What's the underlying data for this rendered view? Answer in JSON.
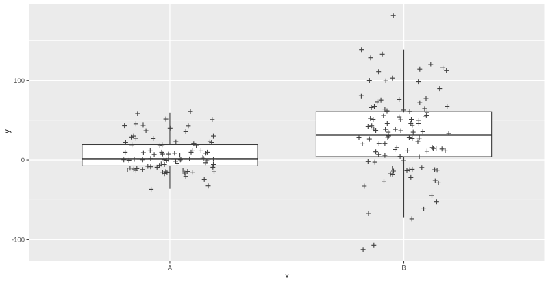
{
  "chart_data": {
    "type": "boxplot",
    "subtype": "boxplot-with-jitter",
    "orientation": "vertical",
    "title": "",
    "xlabel": "x",
    "ylabel": "y",
    "categories": [
      "A",
      "B"
    ],
    "y_ticks": [
      -100,
      0,
      100
    ],
    "y_minor_gridlines": [
      -50,
      50,
      150
    ],
    "ylim": [
      -126.3,
      196
    ],
    "grid": "on",
    "legend": "none",
    "panel_bg": "#EBEBEB",
    "grid_color": "#FFFFFF",
    "box_fill": "#FFFFFF",
    "box_stroke": "#3A3A3A",
    "median_color": "#252525",
    "point_color": "#3F3F3F",
    "axis_text_color": "#4D4D4D",
    "tick_mark_color": "#333333",
    "point_marker": "plus",
    "boxes": [
      {
        "category": "A",
        "q1": -7.2,
        "median": 1.4,
        "q3": 19.4,
        "whisker_low": -35.8,
        "whisker_high": 59.5
      },
      {
        "category": "B",
        "q1": 4.3,
        "median": 31.4,
        "q3": 60.9,
        "whisker_low": -71.8,
        "whisker_high": 138.7
      }
    ],
    "jitter_points": {
      "A": [
        [
          -0.138,
          58.6
        ],
        [
          0.088,
          61.2
        ],
        [
          -0.017,
          51.5
        ],
        [
          0.181,
          50.9
        ],
        [
          -0.194,
          43.4
        ],
        [
          -0.145,
          45.8
        ],
        [
          -0.114,
          44.0
        ],
        [
          -0.102,
          36.9
        ],
        [
          0.001,
          40.2
        ],
        [
          0.079,
          43.2
        ],
        [
          0.068,
          35.7
        ],
        [
          -0.155,
          30.0
        ],
        [
          -0.165,
          29.0
        ],
        [
          -0.145,
          27.5
        ],
        [
          -0.071,
          27.1
        ],
        [
          -0.189,
          22.0
        ],
        [
          -0.162,
          19.1
        ],
        [
          0.026,
          23.2
        ],
        [
          0.102,
          20.9
        ],
        [
          0.113,
          18.0
        ],
        [
          0.171,
          23.2
        ],
        [
          0.178,
          22.0
        ],
        [
          0.186,
          30.0
        ],
        [
          -0.033,
          19.1
        ],
        [
          -0.043,
          18.0
        ],
        [
          -0.191,
          10.0
        ],
        [
          -0.113,
          9.4
        ],
        [
          -0.084,
          11.7
        ],
        [
          -0.067,
          7.1
        ],
        [
          -0.035,
          10.0
        ],
        [
          -0.031,
          7.7
        ],
        [
          -0.006,
          7.7
        ],
        [
          0.02,
          8.8
        ],
        [
          0.043,
          6.5
        ],
        [
          0.091,
          10.0
        ],
        [
          0.096,
          11.7
        ],
        [
          0.133,
          11.7
        ],
        [
          0.154,
          8.8
        ],
        [
          0.16,
          10.0
        ],
        [
          -0.197,
          0.3
        ],
        [
          -0.175,
          -0.3
        ],
        [
          -0.152,
          0.9
        ],
        [
          -0.116,
          0.3
        ],
        [
          -0.082,
          2.0
        ],
        [
          -0.025,
          0.3
        ],
        [
          -0.014,
          -0.3
        ],
        [
          -0.006,
          0.9
        ],
        [
          0.025,
          -1.5
        ],
        [
          0.04,
          1.4
        ],
        [
          0.045,
          0.3
        ],
        [
          0.05,
          0.9
        ],
        [
          0.084,
          1.4
        ],
        [
          0.141,
          3.7
        ],
        [
          0.144,
          2.0
        ],
        [
          0.158,
          -0.9
        ],
        [
          0.186,
          0.9
        ],
        [
          -0.181,
          -12.4
        ],
        [
          -0.17,
          -10.0
        ],
        [
          -0.154,
          -11.2
        ],
        [
          -0.145,
          -12.9
        ],
        [
          -0.141,
          -10.6
        ],
        [
          -0.116,
          -11.8
        ],
        [
          -0.094,
          -7.7
        ],
        [
          -0.082,
          -8.3
        ],
        [
          -0.055,
          -8.9
        ],
        [
          -0.045,
          -6.6
        ],
        [
          -0.037,
          -4.9
        ],
        [
          -0.023,
          -5.5
        ],
        [
          -0.018,
          -14.6
        ],
        [
          -0.031,
          -15.2
        ],
        [
          -0.023,
          -16.9
        ],
        [
          -0.012,
          -15.8
        ],
        [
          0.031,
          -3.8
        ],
        [
          0.056,
          -12.4
        ],
        [
          0.064,
          -16.3
        ],
        [
          0.068,
          -20.3
        ],
        [
          0.076,
          -14.1
        ],
        [
          0.096,
          -15.2
        ],
        [
          0.152,
          -3.2
        ],
        [
          0.186,
          -5.5
        ],
        [
          0.189,
          -14.6
        ],
        [
          0.184,
          -8.9
        ],
        [
          0.147,
          -24.4
        ],
        [
          0.164,
          -32.4
        ],
        [
          -0.08,
          -36.4
        ]
      ],
      "B": [
        [
          -0.045,
          181.6
        ],
        [
          -0.181,
          138.7
        ],
        [
          -0.142,
          128.4
        ],
        [
          -0.092,
          133.0
        ],
        [
          -0.108,
          111.2
        ],
        [
          0.068,
          114.2
        ],
        [
          0.115,
          120.4
        ],
        [
          0.167,
          115.9
        ],
        [
          0.182,
          112.4
        ],
        [
          -0.147,
          100.1
        ],
        [
          -0.077,
          99.6
        ],
        [
          -0.049,
          103.0
        ],
        [
          0.062,
          98.4
        ],
        [
          0.153,
          89.8
        ],
        [
          -0.182,
          80.7
        ],
        [
          -0.114,
          73.2
        ],
        [
          -0.098,
          75.5
        ],
        [
          -0.02,
          76.1
        ],
        [
          -0.139,
          65.8
        ],
        [
          -0.126,
          67.5
        ],
        [
          -0.081,
          64.0
        ],
        [
          -0.001,
          62.9
        ],
        [
          0.068,
          72.1
        ],
        [
          0.095,
          77.3
        ],
        [
          0.089,
          64.6
        ],
        [
          0.185,
          67.5
        ],
        [
          -0.072,
          61.8
        ],
        [
          0.025,
          61.2
        ],
        [
          0.099,
          60.1
        ],
        [
          -0.143,
          52.4
        ],
        [
          -0.087,
          55.8
        ],
        [
          -0.131,
          51.2
        ],
        [
          -0.02,
          54.1
        ],
        [
          -0.014,
          50.6
        ],
        [
          0.032,
          51.2
        ],
        [
          0.064,
          50.0
        ],
        [
          0.091,
          55.2
        ],
        [
          0.097,
          56.3
        ],
        [
          -0.153,
          42.6
        ],
        [
          -0.137,
          43.2
        ],
        [
          -0.128,
          39.1
        ],
        [
          -0.12,
          37.4
        ],
        [
          -0.079,
          38.6
        ],
        [
          -0.067,
          35.2
        ],
        [
          -0.036,
          38.6
        ],
        [
          -0.013,
          36.9
        ],
        [
          -0.071,
          46.0
        ],
        [
          0.03,
          46.0
        ],
        [
          0.036,
          43.8
        ],
        [
          0.064,
          46.0
        ],
        [
          0.04,
          35.2
        ],
        [
          0.081,
          35.7
        ],
        [
          0.192,
          33.5
        ],
        [
          -0.192,
          28.8
        ],
        [
          -0.147,
          26.6
        ],
        [
          -0.177,
          20.3
        ],
        [
          -0.106,
          20.9
        ],
        [
          -0.081,
          20.9
        ],
        [
          -0.065,
          30.0
        ],
        [
          -0.069,
          28.3
        ],
        [
          0.023,
          28.8
        ],
        [
          0.036,
          27.1
        ],
        [
          0.066,
          27.7
        ],
        [
          0.06,
          23.2
        ],
        [
          -0.03,
          15.7
        ],
        [
          -0.038,
          13.4
        ],
        [
          0.015,
          11.7
        ],
        [
          0.122,
          15.7
        ],
        [
          0.126,
          14.6
        ],
        [
          0.138,
          15.1
        ],
        [
          0.163,
          14.0
        ],
        [
          0.177,
          11.7
        ],
        [
          0.099,
          11.2
        ],
        [
          -0.12,
          10.6
        ],
        [
          -0.108,
          7.1
        ],
        [
          -0.081,
          6.0
        ],
        [
          -0.016,
          4.8
        ],
        [
          0.066,
          4.3
        ],
        [
          -0.153,
          -1.9
        ],
        [
          -0.124,
          -2.6
        ],
        [
          -0.003,
          -0.9
        ],
        [
          -0.049,
          -9.8
        ],
        [
          -0.044,
          -13.7
        ],
        [
          -0.057,
          -17.2
        ],
        [
          -0.048,
          -18.4
        ],
        [
          -0.085,
          -26.4
        ],
        [
          -0.169,
          -32.6
        ],
        [
          0.013,
          -13.2
        ],
        [
          0.025,
          -12.0
        ],
        [
          0.036,
          -11.5
        ],
        [
          0.077,
          -9.2
        ],
        [
          0.132,
          -12.0
        ],
        [
          0.142,
          -12.6
        ],
        [
          0.03,
          -21.8
        ],
        [
          0.134,
          -25.8
        ],
        [
          0.148,
          -28.7
        ],
        [
          0.12,
          -44.6
        ],
        [
          0.14,
          -52.1
        ],
        [
          0.085,
          -61.3
        ],
        [
          -0.151,
          -67.0
        ],
        [
          0.034,
          -73.8
        ],
        [
          -0.128,
          -106.8
        ],
        [
          -0.174,
          -112.4
        ]
      ]
    }
  }
}
